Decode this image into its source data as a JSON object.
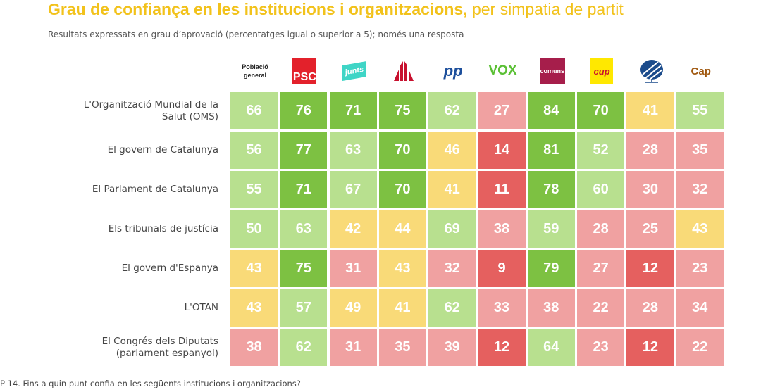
{
  "title": {
    "bold": "Grau de confiança en les institucions i organitzacions,",
    "rest": " per simpatia de partit"
  },
  "subtitle": "Resultats expressats en grau d’aprovació (percentatges igual o superior a 5); només una resposta",
  "footer": "P 14. Fins a quin punt confia en les següents institucions i organitzacions?",
  "colors": {
    "title": "#f2c21b",
    "dark_green": "#7dc142",
    "light_green": "#b8e08f",
    "yellow": "#f9da78",
    "pink": "#f0a1a1",
    "red": "#e5605f"
  },
  "chart_data": {
    "type": "heatmap",
    "columns": [
      {
        "label": "Població general",
        "logo": "text"
      },
      {
        "label": "PSC",
        "logo": "psc-logo"
      },
      {
        "label": "junts",
        "logo": "junts-logo"
      },
      {
        "label": "ERC",
        "logo": "erc-logo"
      },
      {
        "label": "PP",
        "logo": "pp-logo"
      },
      {
        "label": "VOX",
        "logo": "vox-logo"
      },
      {
        "label": "comuns",
        "logo": "comuns-logo"
      },
      {
        "label": "CUP",
        "logo": "cup-logo"
      },
      {
        "label": "Aliança Catalana",
        "logo": "tree-logo"
      },
      {
        "label": "Cap",
        "logo": "text"
      }
    ],
    "rows": [
      {
        "label": "L'Organització Mundial de la Salut (OMS)",
        "values": [
          66,
          76,
          71,
          75,
          62,
          27,
          84,
          70,
          41,
          55
        ]
      },
      {
        "label": "El govern de Catalunya",
        "values": [
          56,
          77,
          63,
          70,
          46,
          14,
          81,
          52,
          28,
          35
        ]
      },
      {
        "label": "El Parlament de Catalunya",
        "values": [
          55,
          71,
          67,
          70,
          41,
          11,
          78,
          60,
          30,
          32
        ]
      },
      {
        "label": "Els tribunals de justícia",
        "values": [
          50,
          63,
          42,
          44,
          69,
          38,
          59,
          28,
          25,
          43
        ]
      },
      {
        "label": "El govern d'Espanya",
        "values": [
          43,
          75,
          31,
          43,
          32,
          9,
          79,
          27,
          12,
          23
        ]
      },
      {
        "label": "L'OTAN",
        "values": [
          43,
          57,
          49,
          41,
          62,
          33,
          38,
          22,
          28,
          34
        ]
      },
      {
        "label": "El Congrés dels Diputats (parlament espanyol)",
        "values": [
          38,
          62,
          31,
          35,
          39,
          12,
          64,
          23,
          12,
          22
        ]
      }
    ]
  }
}
